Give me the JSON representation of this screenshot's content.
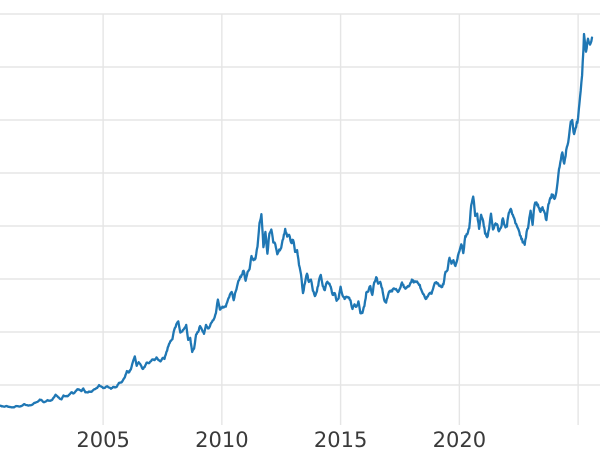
{
  "chart_data": {
    "type": "line",
    "title": "",
    "xlabel": "",
    "ylabel": "",
    "grid": true,
    "legend": false,
    "background_color": "#ffffff",
    "line_color": "#1f77b4",
    "grid_color": "#e5e5e5",
    "tick_label_color": "#3a3a3a",
    "x_tick_labels": [
      "2005",
      "2010",
      "2015",
      "2020"
    ],
    "x_gridline_years": [
      2005,
      2010,
      2015,
      2020,
      2025
    ],
    "y_axis_labels_visible": false,
    "y_gridline_values_est": [
      450,
      900,
      1350,
      1800,
      2250,
      2700,
      3150,
      3600
    ],
    "xlim": [
      2000.65,
      2025.95
    ],
    "ylim": [
      110,
      3718
    ],
    "series": [
      {
        "name": "unlabeled-series",
        "start_year": 2000.6667,
        "step_years": 0.0833333,
        "values": [
          273,
          270,
          266,
          272,
          265,
          262,
          261,
          260,
          272,
          270,
          267,
          274,
          287,
          280,
          276,
          277,
          281,
          295,
          301,
          308,
          326,
          321,
          304,
          310,
          322,
          317,
          320,
          342,
          368,
          352,
          335,
          328,
          361,
          356,
          354,
          370,
          388,
          378,
          395,
          414,
          408,
          398,
          420,
          388,
          387,
          395,
          391,
          407,
          415,
          425,
          449,
          438,
          424,
          427,
          440,
          429,
          418,
          433,
          429,
          437,
          468,
          470,
          490,
          517,
          568,
          556,
          582,
          644,
          693,
          613,
          644,
          620,
          586,
          603,
          640,
          635,
          650,
          667,
          661,
          684,
          661,
          650,
          678,
          672,
          730,
          780,
          823,
          838,
          923,
          965,
          990,
          895,
          905,
          930,
          960,
          833,
          850,
          730,
          760,
          880,
          900,
          950,
          916,
          885,
          960,
          930,
          950,
          985,
          1010,
          1060,
          1175,
          1090,
          1105,
          1108,
          1115,
          1170,
          1215,
          1240,
          1170,
          1245,
          1310,
          1355,
          1385,
          1420,
          1335,
          1410,
          1435,
          1545,
          1510,
          1525,
          1625,
          1825,
          1900,
          1620,
          1750,
          1565,
          1735,
          1770,
          1660,
          1645,
          1560,
          1600,
          1615,
          1690,
          1775,
          1710,
          1725,
          1660,
          1680,
          1580,
          1595,
          1470,
          1390,
          1230,
          1315,
          1395,
          1325,
          1345,
          1250,
          1205,
          1245,
          1330,
          1385,
          1290,
          1255,
          1320,
          1310,
          1285,
          1215,
          1230,
          1165,
          1185,
          1285,
          1210,
          1180,
          1200,
          1190,
          1170,
          1095,
          1135,
          1115,
          1160,
          1060,
          1062,
          1120,
          1235,
          1245,
          1290,
          1215,
          1320,
          1365,
          1310,
          1325,
          1270,
          1175,
          1150,
          1215,
          1250,
          1245,
          1270,
          1265,
          1240,
          1270,
          1320,
          1280,
          1270,
          1290,
          1305,
          1345,
          1320,
          1325,
          1315,
          1300,
          1250,
          1220,
          1180,
          1200,
          1230,
          1225,
          1285,
          1320,
          1315,
          1290,
          1280,
          1305,
          1410,
          1425,
          1530,
          1480,
          1510,
          1460,
          1520,
          1585,
          1645,
          1570,
          1715,
          1730,
          1780,
          1975,
          2050,
          1885,
          1905,
          1775,
          1895,
          1845,
          1735,
          1705,
          1770,
          1905,
          1770,
          1815,
          1815,
          1755,
          1785,
          1865,
          1805,
          1795,
          1910,
          1945,
          1895,
          1850,
          1805,
          1765,
          1715,
          1660,
          1640,
          1750,
          1815,
          1930,
          1810,
          1980,
          2000,
          1960,
          1920,
          1960,
          1915,
          1850,
          1985,
          2040,
          2065,
          2030,
          2085,
          2230,
          2340,
          2425,
          2330,
          2445,
          2510,
          2650,
          2700,
          2580,
          2640,
          2720,
          2900,
          3080,
          3430,
          3280,
          3390,
          3340,
          3400
        ]
      }
    ]
  }
}
